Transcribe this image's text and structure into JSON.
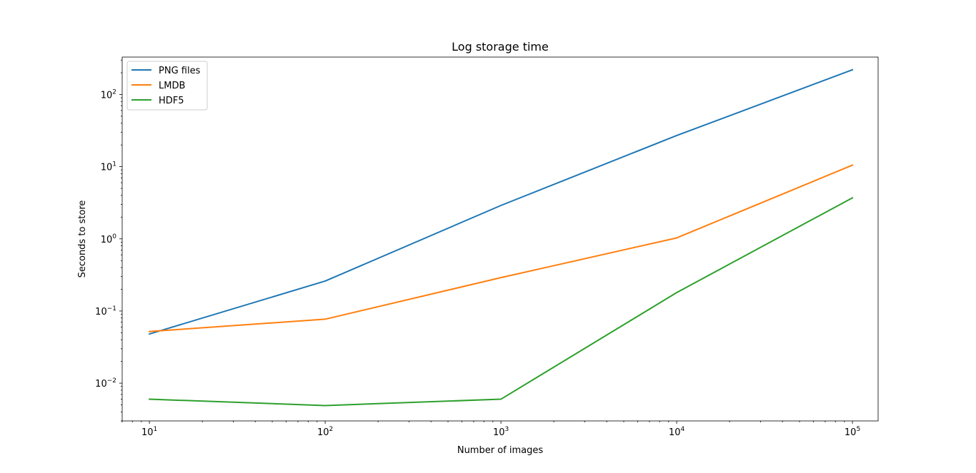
{
  "chart_data": {
    "type": "line",
    "title": "Log storage time",
    "xlabel": "Number of images",
    "ylabel": "Seconds to store",
    "xscale": "log",
    "yscale": "log",
    "xlim": [
      7.0,
      140000
    ],
    "ylim": [
      0.003,
      330
    ],
    "x_ticks": [
      {
        "base": "10",
        "exp": "1",
        "value": 10
      },
      {
        "base": "10",
        "exp": "2",
        "value": 100
      },
      {
        "base": "10",
        "exp": "3",
        "value": 1000
      },
      {
        "base": "10",
        "exp": "4",
        "value": 10000
      },
      {
        "base": "10",
        "exp": "5",
        "value": 100000
      }
    ],
    "y_ticks": [
      {
        "base": "10",
        "exp": "−2",
        "value": 0.01
      },
      {
        "base": "10",
        "exp": "−1",
        "value": 0.1
      },
      {
        "base": "10",
        "exp": "0",
        "value": 1
      },
      {
        "base": "10",
        "exp": "1",
        "value": 10
      },
      {
        "base": "10",
        "exp": "2",
        "value": 100
      }
    ],
    "x": [
      10,
      100,
      1000,
      10000,
      100000
    ],
    "series": [
      {
        "name": "PNG files",
        "color": "#1f77b4",
        "values": [
          0.048,
          0.26,
          2.9,
          27,
          220
        ]
      },
      {
        "name": "LMDB",
        "color": "#ff7f0e",
        "values": [
          0.052,
          0.077,
          0.29,
          1.03,
          10.5
        ]
      },
      {
        "name": "HDF5",
        "color": "#2ca02c",
        "values": [
          0.006,
          0.0049,
          0.006,
          0.18,
          3.7
        ]
      }
    ],
    "legend_position": "upper-left",
    "grid": false
  }
}
